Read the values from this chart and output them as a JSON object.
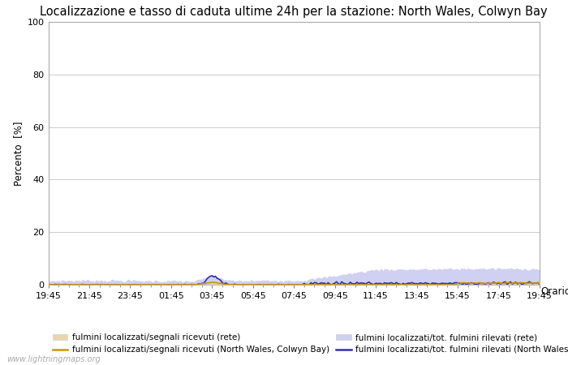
{
  "title": "Localizzazione e tasso di caduta ultime 24h per la stazione: North Wales, Colwyn Bay",
  "ylabel": "Percento  [%]",
  "xlabel_right": "Orario",
  "watermark": "www.lightningmaps.org",
  "ylim": [
    0,
    100
  ],
  "yticks": [
    0,
    20,
    40,
    60,
    80,
    100
  ],
  "x_labels": [
    "19:45",
    "21:45",
    "23:45",
    "01:45",
    "03:45",
    "05:45",
    "07:45",
    "09:45",
    "11:45",
    "13:45",
    "15:45",
    "17:45",
    "19:45"
  ],
  "n_points": 289,
  "fill_rete_color": "#e8d0a0",
  "fill_rete_alpha": 0.85,
  "fill_station_color": "#c8c8f0",
  "fill_station_alpha": 0.85,
  "line_rete_color": "#c8960a",
  "line_station_color": "#3030b0",
  "line_width": 1.2,
  "legend_labels": [
    "fulmini localizzati/segnali ricevuti (rete)",
    "fulmini localizzati/tot. fulmini rilevati (rete)",
    "fulmini localizzati/segnali ricevuti (North Wales, Colwyn Bay)",
    "fulmini localizzati/tot. fulmini rilevati (North Wales, Colwyn Bay)"
  ],
  "title_fontsize": 10.5,
  "axis_fontsize": 8.5,
  "tick_fontsize": 8,
  "legend_fontsize": 7.5,
  "background_color": "#ffffff",
  "grid_color": "#cccccc"
}
